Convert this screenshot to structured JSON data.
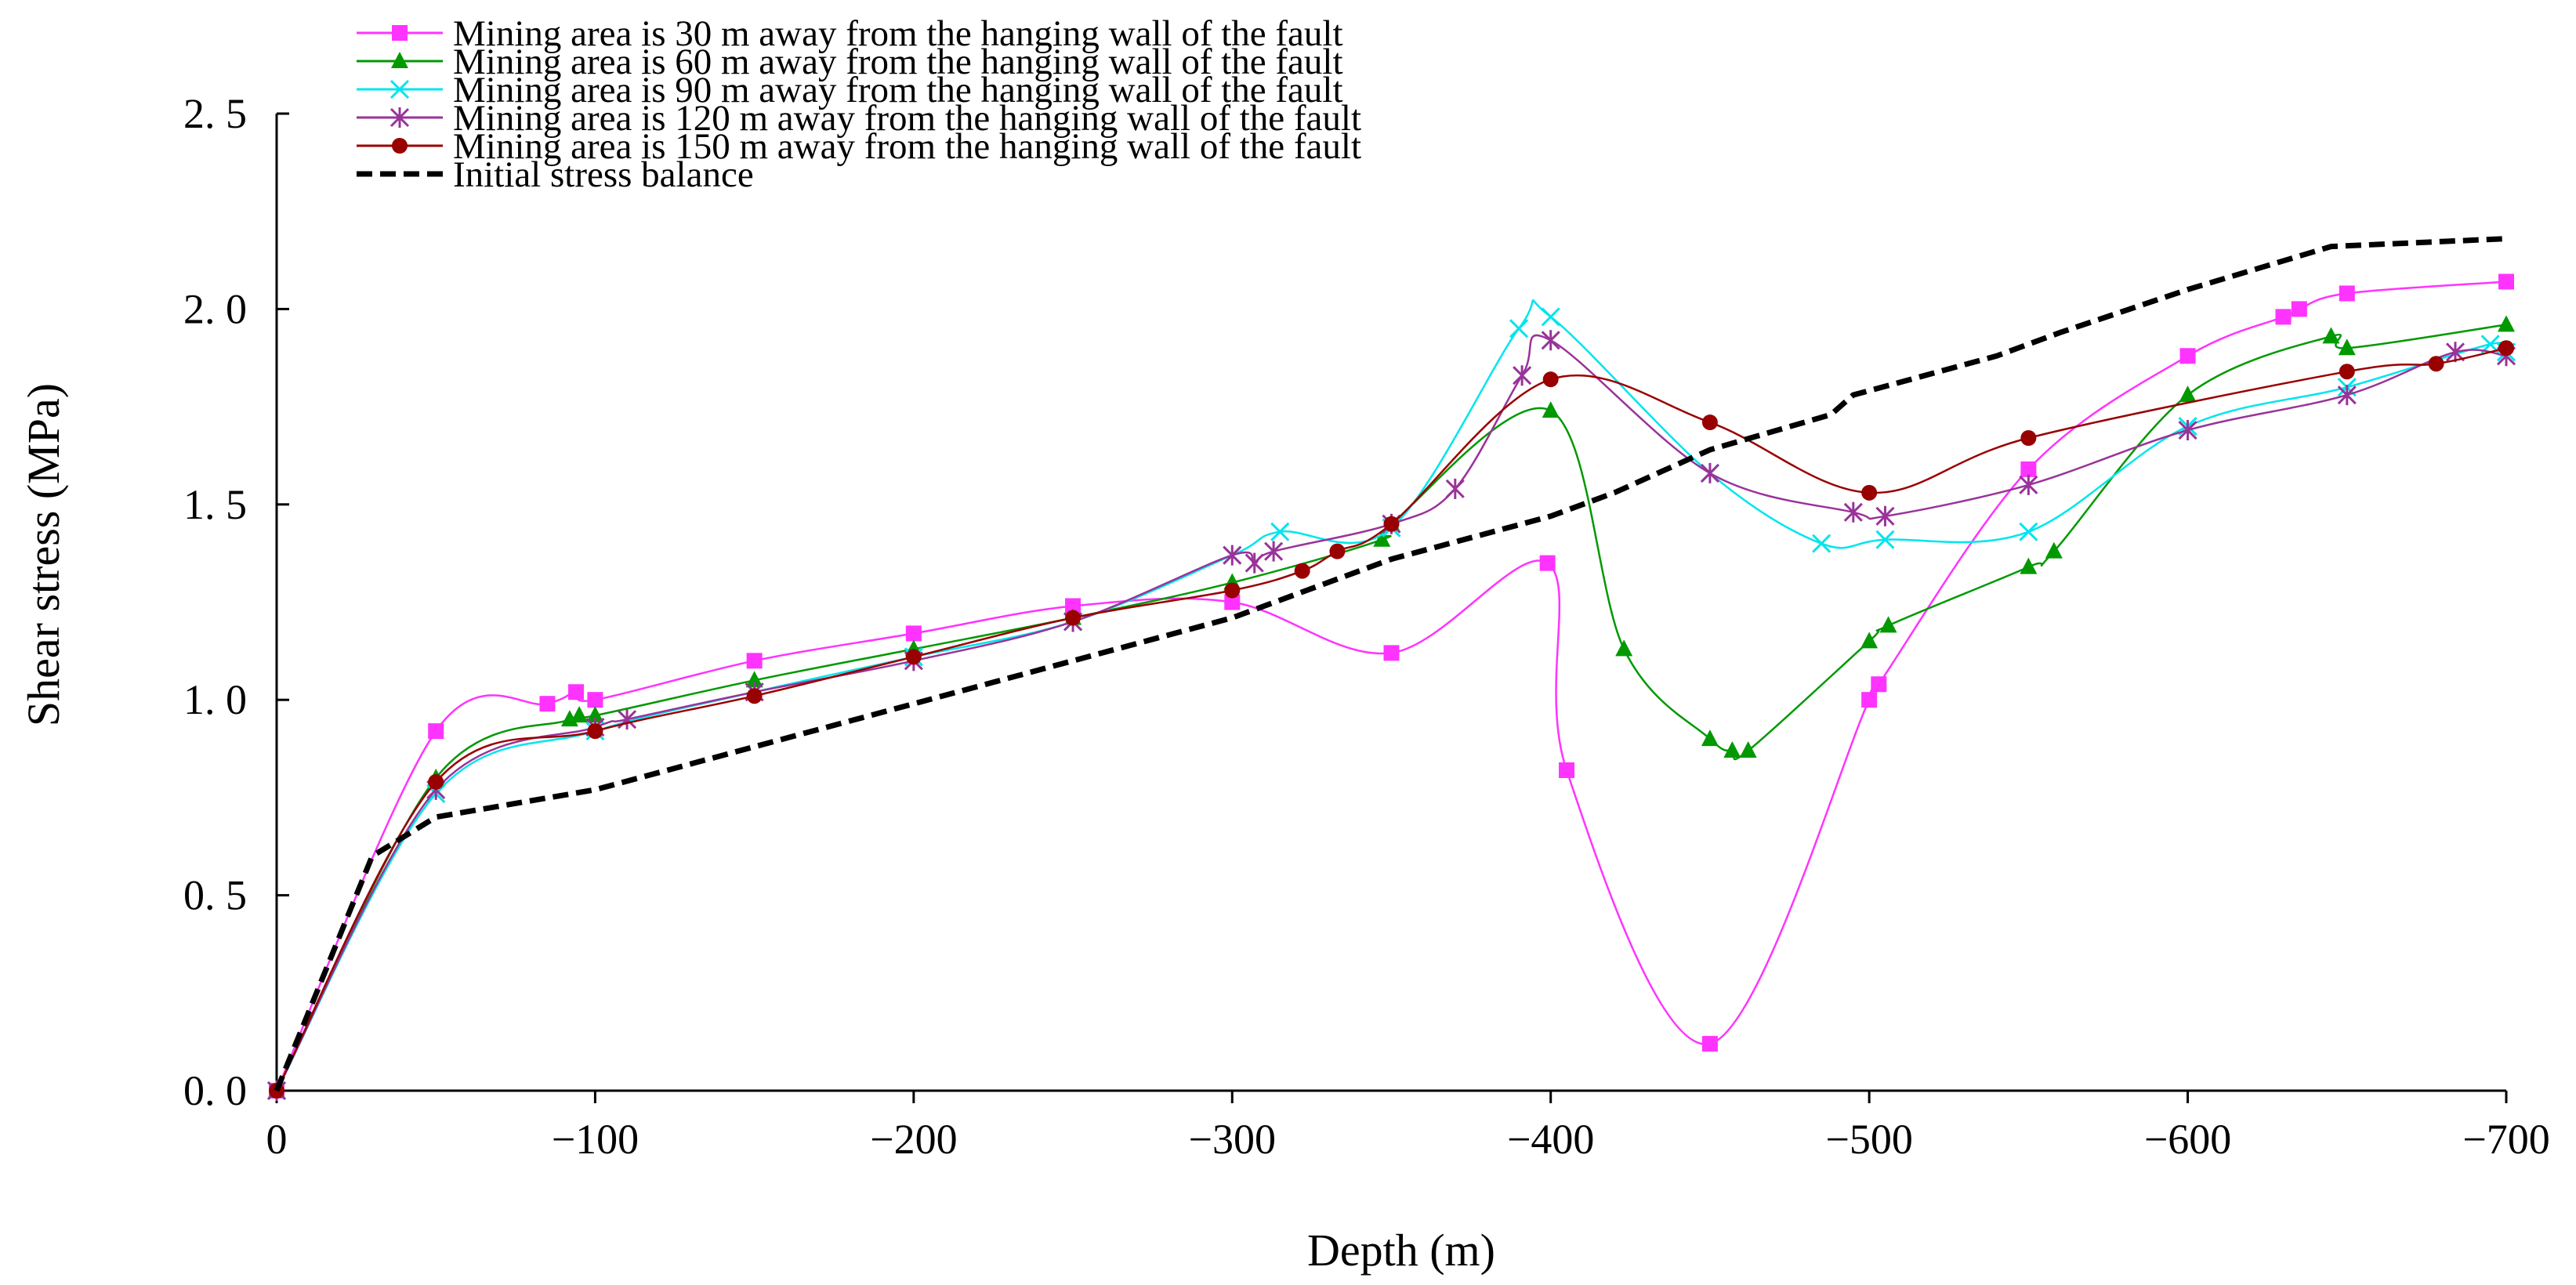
{
  "chart_data": {
    "type": "line",
    "title": "",
    "xlabel": "Depth (m)",
    "ylabel": "Shear stress (MPa)",
    "xlim": [
      0,
      -700
    ],
    "ylim": [
      0,
      2.5
    ],
    "grid": false,
    "legend_position": "top-left",
    "x_ticks": [
      {
        "value": 0,
        "label": "0"
      },
      {
        "value": -100,
        "label": "−100"
      },
      {
        "value": -200,
        "label": "−200"
      },
      {
        "value": -300,
        "label": "−300"
      },
      {
        "value": -400,
        "label": "−400"
      },
      {
        "value": -500,
        "label": "−500"
      },
      {
        "value": -600,
        "label": "−600"
      },
      {
        "value": -700,
        "label": "−700"
      }
    ],
    "y_ticks": [
      {
        "value": 0,
        "label": "0. 0"
      },
      {
        "value": 0.5,
        "label": "0. 5"
      },
      {
        "value": 1.0,
        "label": "1. 0"
      },
      {
        "value": 1.5,
        "label": "1. 5"
      },
      {
        "value": 2.0,
        "label": "2. 0"
      },
      {
        "value": 2.5,
        "label": "2. 5"
      }
    ],
    "series": [
      {
        "name": "Mining area is 30 m away from the hanging wall of the fault",
        "color": "#ff33ff",
        "marker": "square",
        "dashed": false,
        "x": [
          0,
          -50,
          -85,
          -94,
          -100,
          -150,
          -200,
          -250,
          -300,
          -350,
          -399,
          -405,
          -450,
          -500,
          -503,
          -550,
          -600,
          -630,
          -635,
          -650,
          -700
        ],
        "y": [
          0,
          0.92,
          0.99,
          1.02,
          1.0,
          1.1,
          1.17,
          1.24,
          1.25,
          1.12,
          1.35,
          0.82,
          0.12,
          1.0,
          1.04,
          1.59,
          1.88,
          1.98,
          2.0,
          2.04,
          2.07
        ]
      },
      {
        "name": "Mining area is 60 m away from the hanging wall of the fault",
        "color": "#009900",
        "marker": "triangle",
        "dashed": false,
        "x": [
          0,
          -50,
          -92,
          -95,
          -100,
          -150,
          -200,
          -250,
          -300,
          -347,
          -350,
          -400,
          -423,
          -450,
          -457,
          -462,
          -500,
          -506,
          -550,
          -558,
          -600,
          -645,
          -650,
          -700
        ],
        "y": [
          0,
          0.8,
          0.95,
          0.96,
          0.96,
          1.05,
          1.13,
          1.21,
          1.3,
          1.41,
          1.45,
          1.74,
          1.13,
          0.9,
          0.87,
          0.87,
          1.15,
          1.19,
          1.34,
          1.38,
          1.78,
          1.93,
          1.9,
          1.96
        ]
      },
      {
        "name": "Mining area is 90 m away from the hanging wall of the fault",
        "color": "#00e5ee",
        "marker": "x",
        "dashed": false,
        "x": [
          0,
          -50,
          -100,
          -150,
          -200,
          -250,
          -300,
          -315,
          -350,
          -390,
          -400,
          -450,
          -485,
          -505,
          -550,
          -600,
          -650,
          -695,
          -700
        ],
        "y": [
          0,
          0.76,
          0.92,
          1.02,
          1.11,
          1.2,
          1.37,
          1.43,
          1.44,
          1.95,
          1.98,
          1.58,
          1.4,
          1.41,
          1.43,
          1.7,
          1.8,
          1.91,
          1.89
        ]
      },
      {
        "name": "Mining area is 120 m away from the hanging wall of the fault",
        "color": "#993399",
        "marker": "star",
        "dashed": false,
        "x": [
          0,
          -50,
          -100,
          -110,
          -150,
          -200,
          -250,
          -300,
          -307,
          -313,
          -350,
          -370,
          -391,
          -400,
          -450,
          -495,
          -505,
          -550,
          -600,
          -650,
          -684,
          -700
        ],
        "y": [
          0,
          0.77,
          0.93,
          0.95,
          1.02,
          1.1,
          1.2,
          1.37,
          1.35,
          1.38,
          1.45,
          1.54,
          1.83,
          1.92,
          1.58,
          1.48,
          1.47,
          1.55,
          1.69,
          1.78,
          1.89,
          1.88
        ]
      },
      {
        "name": "Mining area is 150 m away from the hanging wall of the fault",
        "color": "#990000",
        "marker": "circle",
        "dashed": false,
        "x": [
          0,
          -50,
          -100,
          -150,
          -200,
          -250,
          -300,
          -322,
          -333,
          -350,
          -400,
          -450,
          -500,
          -550,
          -650,
          -678,
          -700
        ],
        "y": [
          0,
          0.79,
          0.92,
          1.01,
          1.11,
          1.21,
          1.28,
          1.33,
          1.38,
          1.45,
          1.82,
          1.71,
          1.53,
          1.67,
          1.84,
          1.86,
          1.9
        ]
      },
      {
        "name": "Initial stress balance",
        "color": "#000000",
        "marker": "none",
        "dashed": true,
        "x": [
          0,
          -30,
          -50,
          -100,
          -200,
          -250,
          -300,
          -350,
          -400,
          -420,
          -450,
          -488,
          -495,
          -540,
          -560,
          -600,
          -645,
          -700
        ],
        "y": [
          0,
          0.6,
          0.7,
          0.77,
          0.99,
          1.1,
          1.21,
          1.36,
          1.47,
          1.53,
          1.64,
          1.73,
          1.78,
          1.88,
          1.94,
          2.05,
          2.16,
          2.18
        ]
      }
    ]
  }
}
